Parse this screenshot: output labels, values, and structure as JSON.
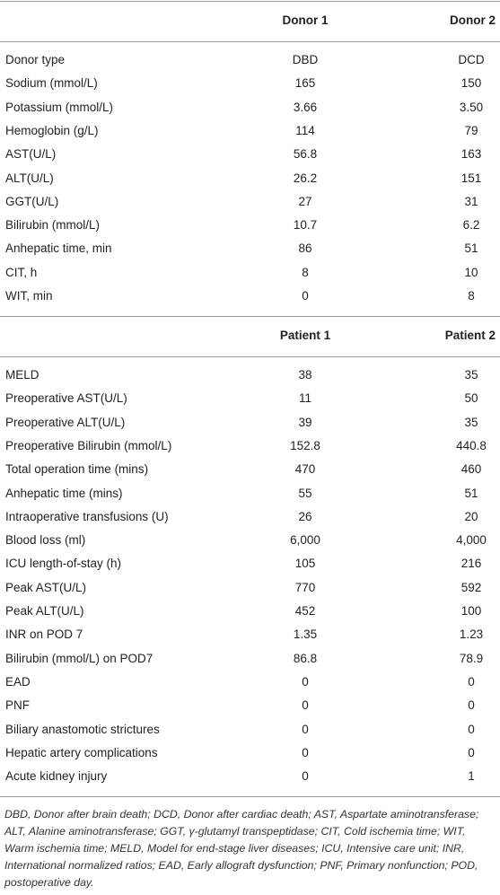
{
  "sections": [
    {
      "columns": [
        "Donor 1",
        "Donor 2"
      ],
      "rows": [
        [
          "Donor type",
          "DBD",
          "DCD"
        ],
        [
          "Sodium (mmol/L)",
          "165",
          "150"
        ],
        [
          "Potassium (mmol/L)",
          "3.66",
          "3.50"
        ],
        [
          "Hemoglobin (g/L)",
          "114",
          "79"
        ],
        [
          "AST(U/L)",
          "56.8",
          "163"
        ],
        [
          "ALT(U/L)",
          "26.2",
          "151"
        ],
        [
          "GGT(U/L)",
          "27",
          "31"
        ],
        [
          "Bilirubin (mmol/L)",
          "10.7",
          "6.2"
        ],
        [
          "Anhepatic time, min",
          "86",
          "51"
        ],
        [
          "CIT, h",
          "8",
          "10"
        ],
        [
          "WIT, min",
          "0",
          "8"
        ]
      ]
    },
    {
      "columns": [
        "Patient 1",
        "Patient 2"
      ],
      "rows": [
        [
          "MELD",
          "38",
          "35"
        ],
        [
          "Preoperative AST(U/L)",
          "11",
          "50"
        ],
        [
          "Preoperative ALT(U/L)",
          "39",
          "35"
        ],
        [
          "Preoperative Bilirubin (mmol/L)",
          "152.8",
          "440.8"
        ],
        [
          "Total operation time (mins)",
          "470",
          "460"
        ],
        [
          "Anhepatic time (mins)",
          "55",
          "51"
        ],
        [
          "Intraoperative transfusions (U)",
          "26",
          "20"
        ],
        [
          "Blood loss (ml)",
          "6,000",
          "4,000"
        ],
        [
          "ICU length-of-stay (h)",
          "105",
          "216"
        ],
        [
          "Peak AST(U/L)",
          "770",
          "592"
        ],
        [
          "Peak ALT(U/L)",
          "452",
          "100"
        ],
        [
          "INR on POD 7",
          "1.35",
          "1.23"
        ],
        [
          "Bilirubin (mmol/L) on POD7",
          "86.8",
          "78.9"
        ],
        [
          "EAD",
          "0",
          "0"
        ],
        [
          "PNF",
          "0",
          "0"
        ],
        [
          "Biliary anastomotic strictures",
          "0",
          "0"
        ],
        [
          "Hepatic artery complications",
          "0",
          "0"
        ],
        [
          "Acute kidney injury",
          "0",
          "1"
        ]
      ]
    }
  ],
  "footnote": "DBD, Donor after brain death; DCD, Donor after cardiac death; AST, Aspartate aminotransferase; ALT, Alanine aminotransferase; GGT, γ-glutamyl transpeptidase; CIT, Cold ischemia time; WIT, Warm ischemia time; MELD, Model for end-stage liver diseases; ICU, Intensive care unit; INR, International normalized ratios; EAD, Early allograft dysfunction; PNF, Primary nonfunction; POD, postoperative day."
}
